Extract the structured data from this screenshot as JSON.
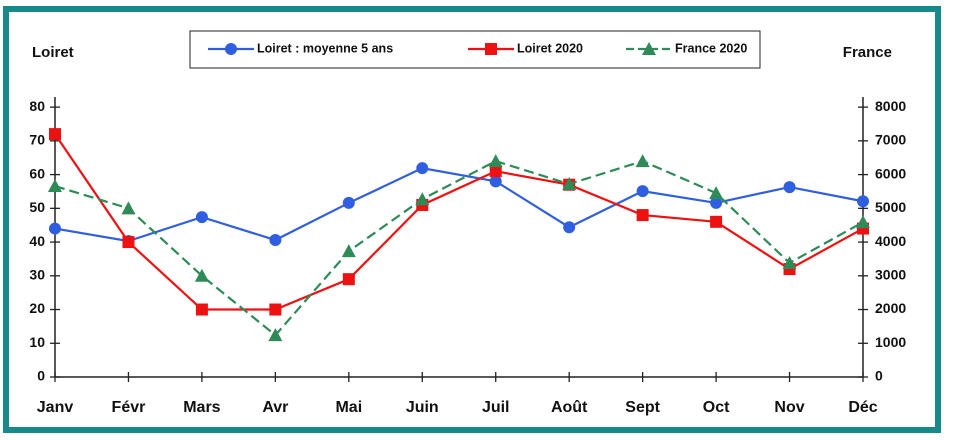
{
  "chart_data": {
    "type": "line",
    "y_label": "Loiret",
    "y2_label": "France",
    "categories": [
      "Janv",
      "Févr",
      "Mars",
      "Avr",
      "Mai",
      "Juin",
      "Juil",
      "Août",
      "Sept",
      "Oct",
      "Nov",
      "Déc"
    ],
    "series": [
      {
        "name": "Loiret : moyenne 5 ans",
        "color": "#2f5fe0",
        "marker": "circle",
        "dash": false,
        "values": [
          44,
          40.3,
          47.4,
          40.6,
          51.6,
          61.9,
          58,
          44.4,
          55.1,
          51.6,
          56.3,
          52.1
        ]
      },
      {
        "name": "Loiret 2020",
        "color": "#ee1111",
        "marker": "square",
        "dash": false,
        "values": [
          72,
          40,
          20,
          20,
          29,
          51,
          61,
          57,
          48,
          46,
          32,
          44
        ]
      },
      {
        "name": "France 2020",
        "color": "#2e8b57",
        "marker": "triangle",
        "dash": true,
        "axis": "y2",
        "values": [
          5660,
          5000,
          3000,
          1240,
          3730,
          5270,
          6400,
          5720,
          6400,
          5450,
          3380,
          4590
        ]
      }
    ],
    "ylim": [
      0,
      83
    ],
    "yticks": [
      0,
      10,
      20,
      30,
      40,
      50,
      60,
      70,
      80
    ],
    "y2lim": [
      0,
      8300
    ],
    "y2ticks": [
      0,
      1000,
      2000,
      3000,
      4000,
      5000,
      6000,
      7000,
      8000
    ],
    "legend": "top"
  }
}
